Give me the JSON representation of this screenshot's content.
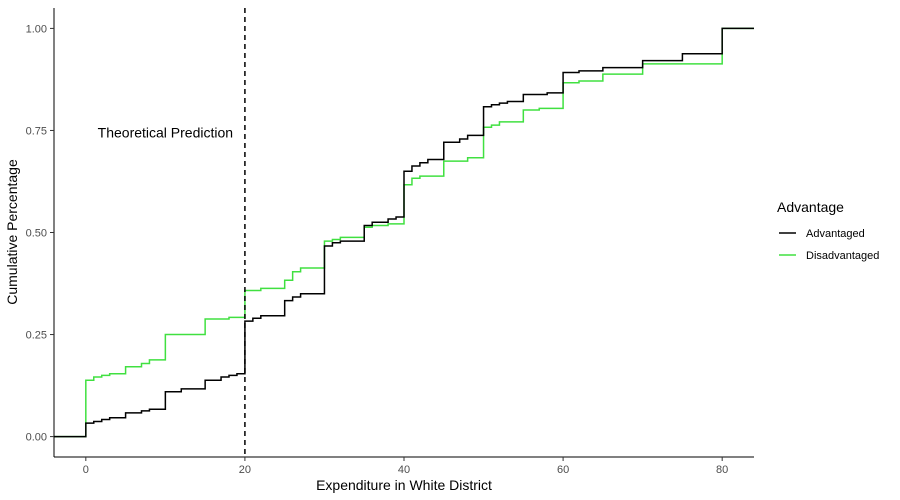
{
  "chart_data": {
    "type": "line",
    "step": true,
    "xlabel": "Expenditure in White District",
    "ylabel": "Cumulative Percentage",
    "xlim": [
      -4,
      84
    ],
    "ylim": [
      -0.05,
      1.05
    ],
    "x_ticks": [
      0,
      20,
      40,
      60,
      80
    ],
    "x_tick_labels": [
      "0",
      "20",
      "40",
      "60",
      "80"
    ],
    "y_ticks": [
      0,
      0.25,
      0.5,
      0.75,
      1.0
    ],
    "y_tick_labels": [
      "0.00",
      "0.25",
      "0.50",
      "0.75",
      "1.00"
    ],
    "grid": false,
    "legend": {
      "title": "Advantage",
      "placement": "right"
    },
    "vline": {
      "x": 20,
      "style": "dashed",
      "color": "#000000"
    },
    "annotation": {
      "text": "Theoretical Prediction",
      "x": 10,
      "y": 0.745
    },
    "series": [
      {
        "name": "Advantaged",
        "color": "#000000",
        "points": [
          [
            -4,
            0
          ],
          [
            0,
            0.033
          ],
          [
            1,
            0.037
          ],
          [
            2,
            0.042
          ],
          [
            3,
            0.046
          ],
          [
            5,
            0.058
          ],
          [
            7,
            0.063
          ],
          [
            8,
            0.067
          ],
          [
            10,
            0.11
          ],
          [
            12,
            0.117
          ],
          [
            15,
            0.138
          ],
          [
            17,
            0.146
          ],
          [
            18,
            0.15
          ],
          [
            19,
            0.154
          ],
          [
            20,
            0.283
          ],
          [
            21,
            0.29
          ],
          [
            22,
            0.296
          ],
          [
            25,
            0.333
          ],
          [
            26,
            0.342
          ],
          [
            27,
            0.35
          ],
          [
            30,
            0.467
          ],
          [
            31,
            0.475
          ],
          [
            32,
            0.479
          ],
          [
            35,
            0.517
          ],
          [
            36,
            0.525
          ],
          [
            38,
            0.533
          ],
          [
            39,
            0.538
          ],
          [
            40,
            0.65
          ],
          [
            41,
            0.663
          ],
          [
            42,
            0.671
          ],
          [
            43,
            0.679
          ],
          [
            45,
            0.721
          ],
          [
            47,
            0.729
          ],
          [
            48,
            0.738
          ],
          [
            50,
            0.808
          ],
          [
            51,
            0.813
          ],
          [
            52,
            0.817
          ],
          [
            53,
            0.821
          ],
          [
            55,
            0.838
          ],
          [
            58,
            0.842
          ],
          [
            60,
            0.892
          ],
          [
            62,
            0.896
          ],
          [
            65,
            0.904
          ],
          [
            70,
            0.921
          ],
          [
            75,
            0.938
          ],
          [
            80,
            1.0
          ],
          [
            84,
            1.0
          ]
        ]
      },
      {
        "name": "Disadvantaged",
        "color": "#40e040",
        "points": [
          [
            -4,
            0
          ],
          [
            0,
            0.138
          ],
          [
            1,
            0.146
          ],
          [
            2,
            0.15
          ],
          [
            3,
            0.154
          ],
          [
            5,
            0.171
          ],
          [
            7,
            0.179
          ],
          [
            8,
            0.188
          ],
          [
            10,
            0.25
          ],
          [
            15,
            0.288
          ],
          [
            18,
            0.292
          ],
          [
            20,
            0.358
          ],
          [
            22,
            0.363
          ],
          [
            25,
            0.383
          ],
          [
            26,
            0.404
          ],
          [
            27,
            0.413
          ],
          [
            30,
            0.479
          ],
          [
            31,
            0.483
          ],
          [
            32,
            0.488
          ],
          [
            35,
            0.513
          ],
          [
            36,
            0.517
          ],
          [
            38,
            0.521
          ],
          [
            40,
            0.617
          ],
          [
            41,
            0.633
          ],
          [
            42,
            0.638
          ],
          [
            45,
            0.675
          ],
          [
            48,
            0.683
          ],
          [
            50,
            0.758
          ],
          [
            51,
            0.763
          ],
          [
            52,
            0.771
          ],
          [
            55,
            0.8
          ],
          [
            57,
            0.804
          ],
          [
            60,
            0.867
          ],
          [
            62,
            0.871
          ],
          [
            65,
            0.888
          ],
          [
            70,
            0.913
          ],
          [
            80,
            1.0
          ],
          [
            84,
            1.0
          ]
        ]
      }
    ]
  }
}
